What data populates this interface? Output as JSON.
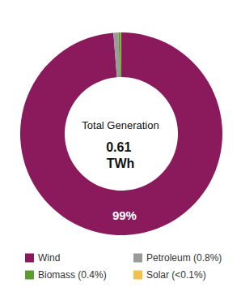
{
  "chart_data": {
    "type": "pie",
    "title": "Total Generation",
    "subtitle": "0.61 TWh",
    "categories": [
      "Wind",
      "Petroleum (0.8%)",
      "Biomass (0.4%)",
      "Solar (<0.1%)"
    ],
    "values": [
      99,
      0.8,
      0.4,
      0.05
    ],
    "value_labels": [
      "99%",
      null,
      null,
      null
    ],
    "colors": [
      "#8b1a5c",
      "#9a9a9a",
      "#5a9e32",
      "#f2c14a"
    ],
    "data_labels": true,
    "legend": "bottom"
  }
}
